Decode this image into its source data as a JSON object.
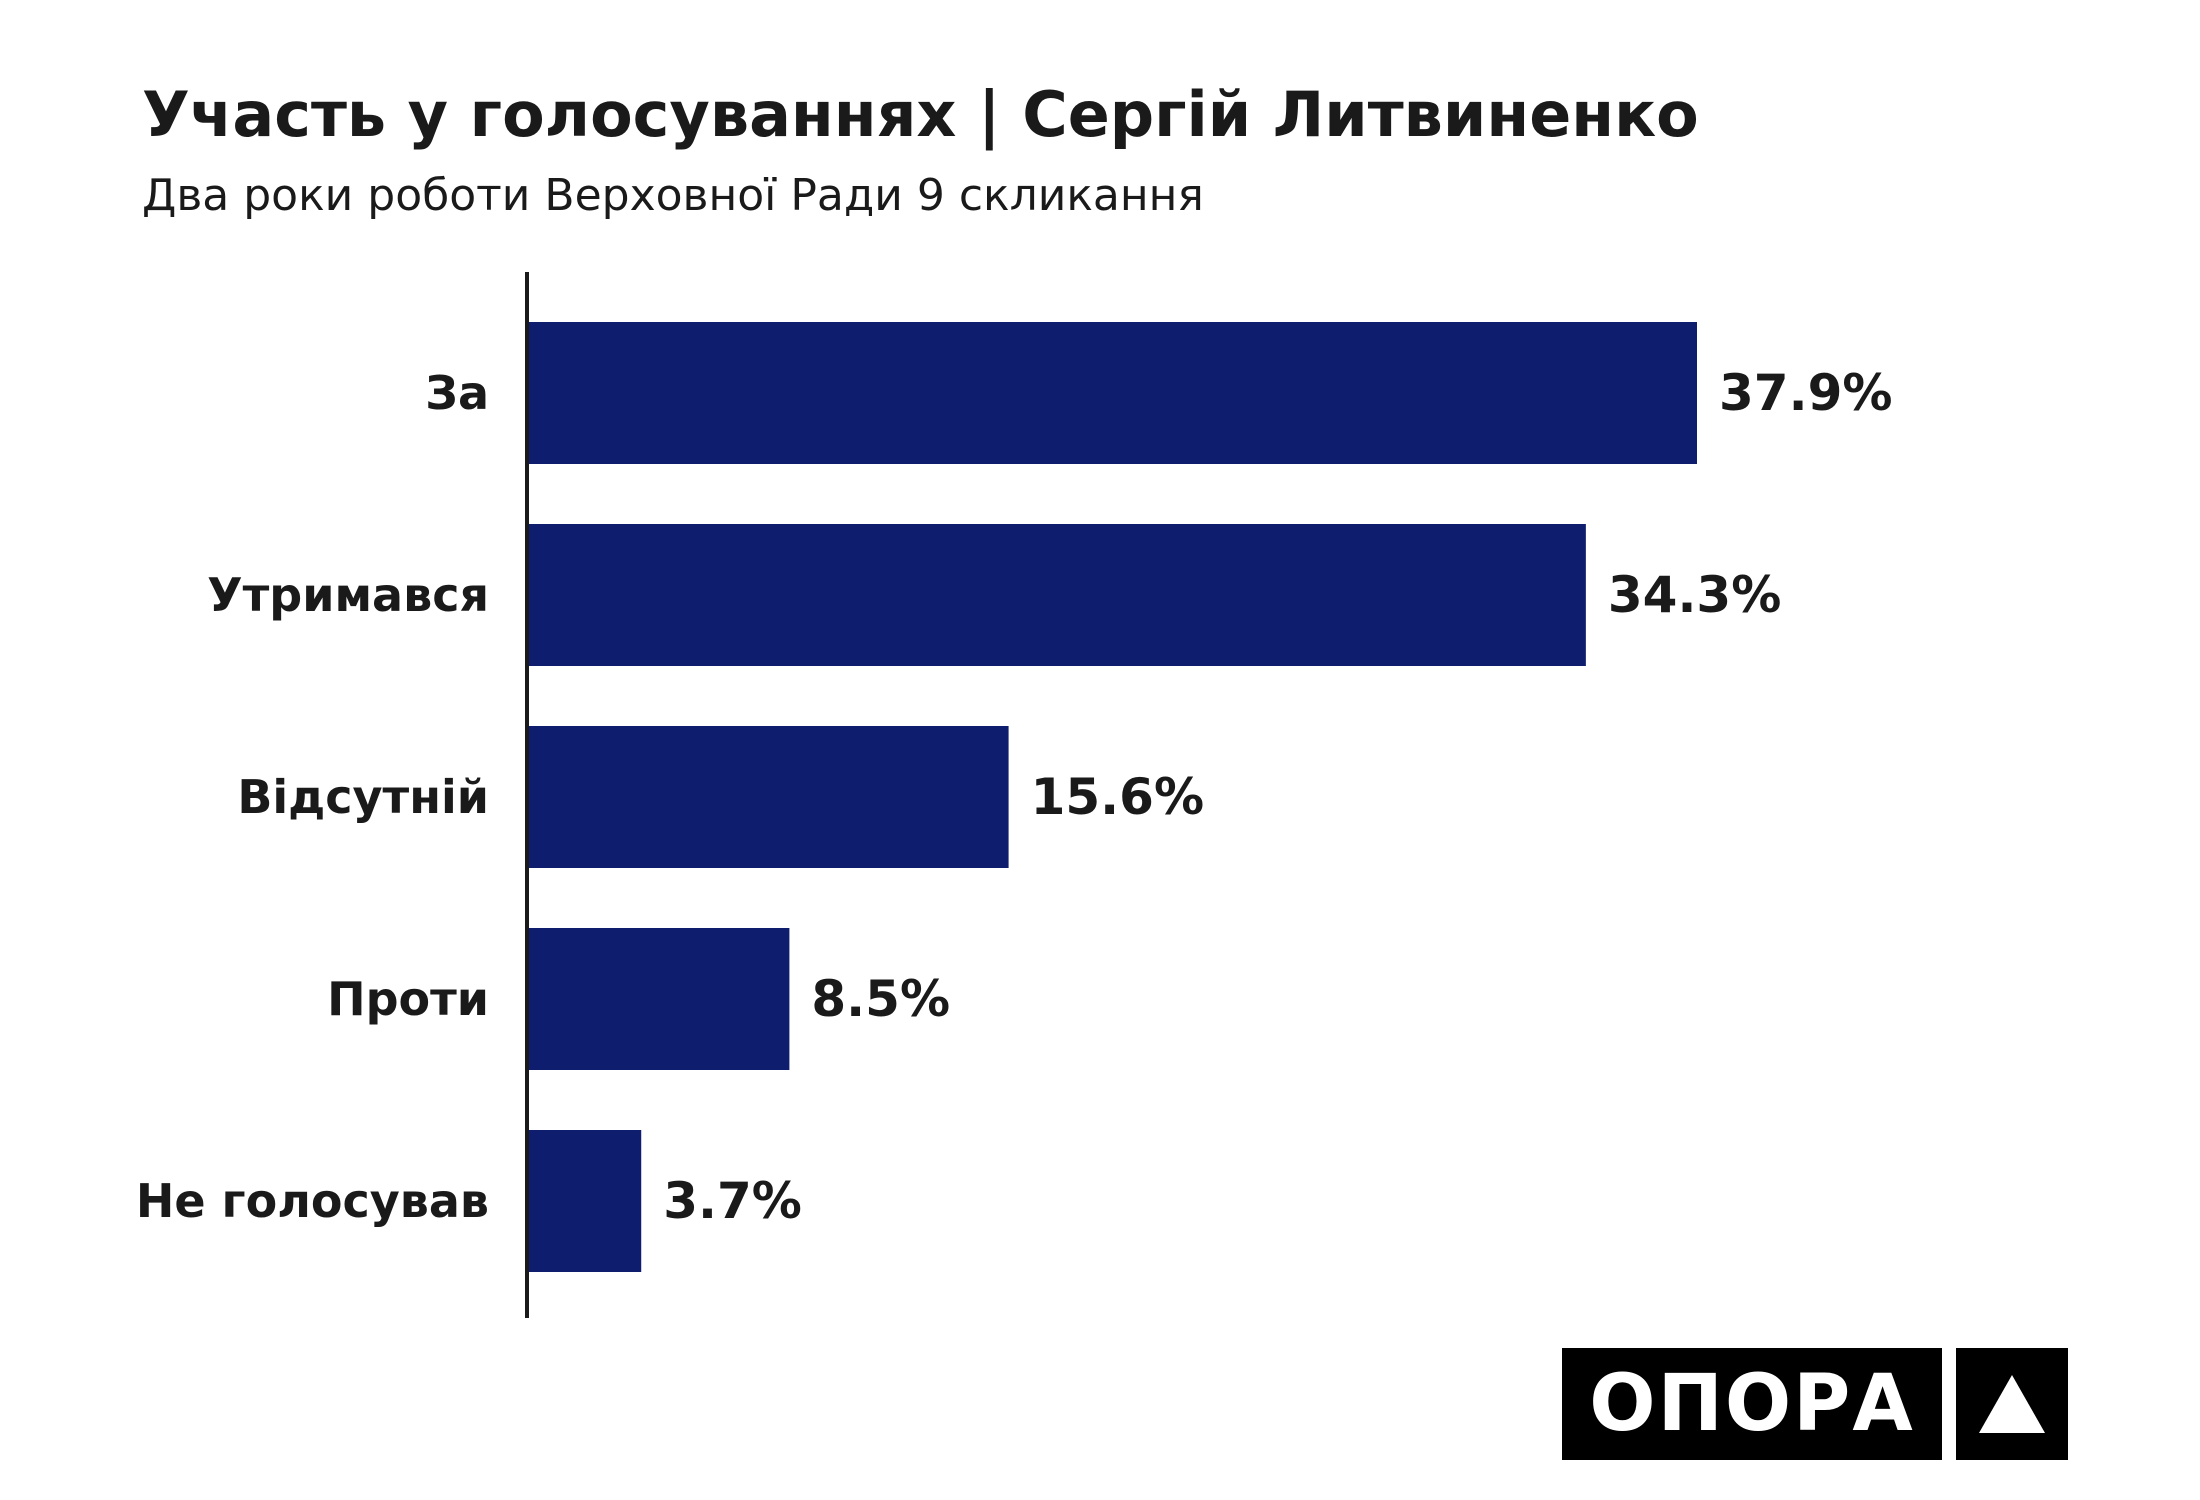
{
  "title": "Участь у голосуваннях | Сергій Литвиненко",
  "subtitle": "Два роки роботи Верховної Ради 9 скликання",
  "logo": {
    "text": "ОПОРА",
    "icon": "triangle-icon"
  },
  "colors": {
    "bar": "#0f1d6e",
    "axis": "#1a1a1a",
    "text": "#1a1a1a"
  },
  "chart_data": {
    "type": "bar",
    "orientation": "horizontal",
    "categories": [
      "За",
      "Утримався",
      "Відсутній",
      "Проти",
      "Не голосував"
    ],
    "values": [
      37.9,
      34.3,
      15.6,
      8.5,
      3.7
    ],
    "value_labels": [
      "37.9%",
      "34.3%",
      "15.6%",
      "8.5%",
      "3.7%"
    ],
    "title": "Участь у голосуваннях | Сергій Литвиненко",
    "subtitle": "Два роки роботи Верховної Ради 9 скликання",
    "xlim": [
      0,
      40
    ],
    "grid": false,
    "legend": "none"
  }
}
